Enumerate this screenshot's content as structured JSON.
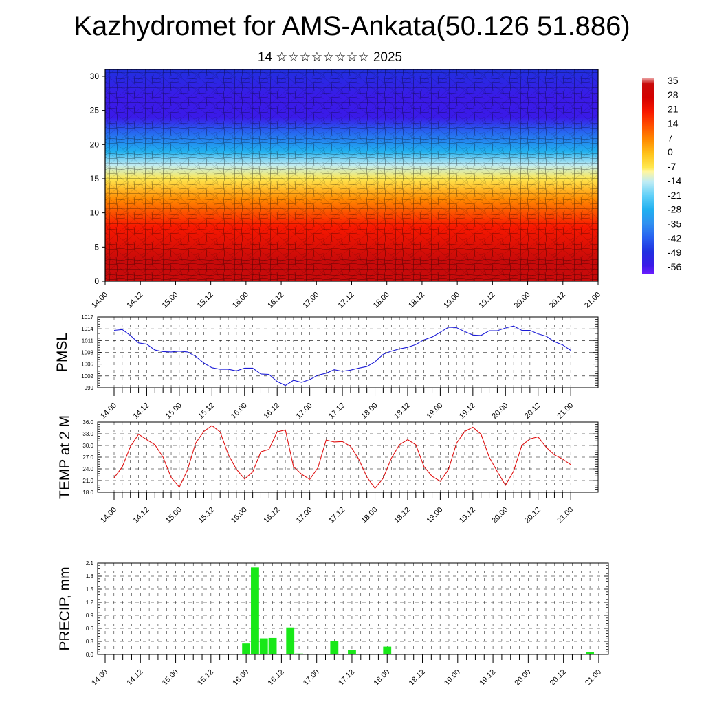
{
  "title": "Kazhydromet for AMS-Ankata(50.126 51.886)",
  "subtitle": "14 ☆☆☆☆☆☆☆☆ 2025",
  "time_labels": [
    "14.00",
    "14.12",
    "15.00",
    "15.12",
    "16.00",
    "16.12",
    "17.00",
    "17.12",
    "18.00",
    "18.12",
    "19.00",
    "19.12",
    "20.00",
    "20.12",
    "21.00"
  ],
  "colors": {
    "pmsl_line": "#1a1ad6",
    "temp_line": "#e01010",
    "precip_bar": "#18e818"
  },
  "chart_data": [
    {
      "type": "heatmap",
      "title": "",
      "xlabel": "",
      "ylabel": "",
      "y_ticks": [
        "0",
        "5",
        "10",
        "15",
        "20",
        "25",
        "30"
      ],
      "ylim": [
        0,
        31
      ],
      "colorbar_labels": [
        "35",
        "28",
        "21",
        "14",
        "7",
        "0",
        "-7",
        "-14",
        "-21",
        "-28",
        "-35",
        "-42",
        "-49",
        "-56"
      ],
      "colorbar_range": [
        -60,
        38
      ],
      "vertical_temperature_profile": [
        {
          "level": 0,
          "value": 35
        },
        {
          "level": 3,
          "value": 30
        },
        {
          "level": 8,
          "value": 20
        },
        {
          "level": 12,
          "value": 7
        },
        {
          "level": 15,
          "value": -7
        },
        {
          "level": 17,
          "value": -14
        },
        {
          "level": 19,
          "value": -28
        },
        {
          "level": 22,
          "value": -42
        },
        {
          "level": 24,
          "value": -56
        },
        {
          "level": 27,
          "value": -56
        },
        {
          "level": 31,
          "value": -49
        }
      ]
    },
    {
      "type": "line",
      "ylabel": "PMSL",
      "y_ticks": [
        "999",
        "1002",
        "1005",
        "1008",
        "1011",
        "1014",
        "1017"
      ],
      "ylim": [
        999,
        1017
      ],
      "series": [
        {
          "values": [
            1013.6,
            1013.8,
            1012.3,
            1010.4,
            1010.1,
            1008.6,
            1008.2,
            1008.1,
            1008.3,
            1008.1,
            1007.0,
            1005.3,
            1004.1,
            1003.7,
            1003.7,
            1003.3,
            1004.0,
            1004.0,
            1002.5,
            1002.4,
            1000.6,
            999.6,
            1000.9,
            1000.4,
            1001.1,
            1002.2,
            1002.7,
            1003.6,
            1003.2,
            1003.5,
            1004.0,
            1004.4,
            1005.6,
            1007.5,
            1008.3,
            1008.9,
            1009.3,
            1010.0,
            1011.2,
            1011.9,
            1013.1,
            1014.4,
            1014.3,
            1013.3,
            1012.4,
            1012.3,
            1013.5,
            1013.5,
            1014.2,
            1014.7,
            1013.6,
            1013.6,
            1012.7,
            1012.1,
            1010.7,
            1009.9,
            1008.5
          ]
        }
      ]
    },
    {
      "type": "line",
      "ylabel": "TEMP at 2 M",
      "y_ticks": [
        "18.0",
        "21.0",
        "24.0",
        "27.0",
        "30.0",
        "33.0",
        "36.0"
      ],
      "ylim": [
        18,
        36
      ],
      "series": [
        {
          "values": [
            21.7,
            24.5,
            29.7,
            32.9,
            31.5,
            30.2,
            27.0,
            21.8,
            19.3,
            23.7,
            30.6,
            33.6,
            35.1,
            33.5,
            27.7,
            23.9,
            21.4,
            23.2,
            28.4,
            29.0,
            33.5,
            34.0,
            24.6,
            22.6,
            21.3,
            24.3,
            31.4,
            30.9,
            31.0,
            29.8,
            26.5,
            21.9,
            19.0,
            21.6,
            26.7,
            30.2,
            31.5,
            30.2,
            24.6,
            22.1,
            20.8,
            23.8,
            30.6,
            33.6,
            34.7,
            32.9,
            27.0,
            23.3,
            19.8,
            23.4,
            30.0,
            31.7,
            32.2,
            29.5,
            27.6,
            26.5,
            25.1
          ]
        }
      ]
    },
    {
      "type": "bar",
      "ylabel": "PRECIP, mm",
      "y_ticks": [
        "0.0",
        "0.3",
        "0.6",
        "0.9",
        "1.2",
        "1.5",
        "1.8",
        "2.1"
      ],
      "ylim": [
        0,
        2.1
      ],
      "bars": [
        {
          "step": 16,
          "value": 0.25
        },
        {
          "step": 17,
          "value": 2.0
        },
        {
          "step": 18,
          "value": 0.37
        },
        {
          "step": 19,
          "value": 0.38
        },
        {
          "step": 21,
          "value": 0.62
        },
        {
          "step": 22,
          "value": 0.02
        },
        {
          "step": 26,
          "value": 0.31
        },
        {
          "step": 28,
          "value": 0.1
        },
        {
          "step": 32,
          "value": 0.18
        },
        {
          "step": 52,
          "value": 0.01
        },
        {
          "step": 53,
          "value": 0.01
        },
        {
          "step": 55,
          "value": 0.06
        }
      ]
    }
  ]
}
